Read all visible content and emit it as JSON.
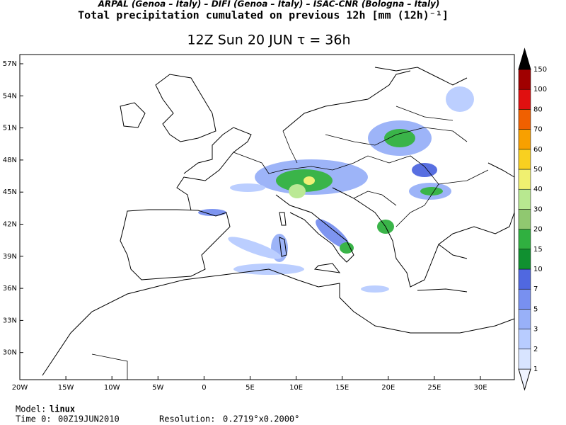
{
  "header": {
    "agencies": "ARPAL (Genoa – Italy)  –  DIFI (Genoa – Italy)  –  ISAC-CNR (Bologna – Italy)",
    "title": "Total precipitation cumulated on previous 12h [mm (12h)⁻¹]",
    "valid": "12Z Sun 20 JUN  τ = 36h"
  },
  "map": {
    "lat_labels": [
      "57N",
      "54N",
      "51N",
      "48N",
      "45N",
      "42N",
      "39N",
      "36N",
      "33N",
      "30N"
    ],
    "lon_labels": [
      "20W",
      "15W",
      "10W",
      "5W",
      "0",
      "5E",
      "10E",
      "15E",
      "20E",
      "25E",
      "30E"
    ]
  },
  "colorbar": {
    "levels": [
      1,
      2,
      3,
      5,
      7,
      10,
      15,
      20,
      30,
      40,
      50,
      60,
      70,
      80,
      100,
      150
    ],
    "colors": [
      "#f0f4ff",
      "#d8e4ff",
      "#b8ccff",
      "#98b0f8",
      "#7890f0",
      "#5068e0",
      "#109030",
      "#30b040",
      "#90c870",
      "#b8e890",
      "#f0f070",
      "#f8d020",
      "#f8a000",
      "#f06000",
      "#e01010",
      "#a00000",
      "#000000"
    ]
  },
  "footer": {
    "model_label": "Model:",
    "model": "linux",
    "time_label": "Time 0:",
    "time": "00Z19JUN2010",
    "res_label": "Resolution:",
    "res": "0.2719°x0.2000°"
  }
}
